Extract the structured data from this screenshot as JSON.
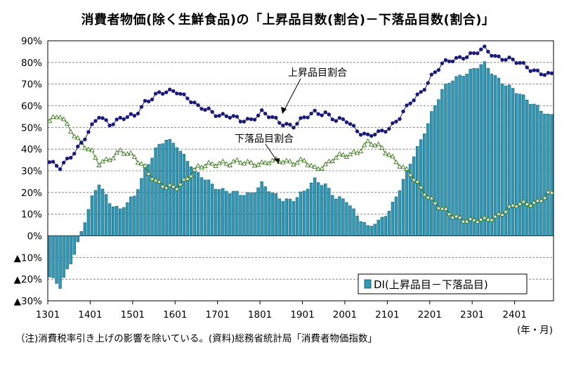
{
  "title": "消費者物価(除く生鮮食品)の「上昇品目数(割合)－下落品目数(割合)」",
  "note": "（注)消費税率引き上げの影響を除いている。(資料)総務省統計局「消費者物価指数」",
  "chart_data": {
    "type": "bar+line",
    "title": "消費者物価(除く生鮮食品)の「上昇品目数(割合)－下落品目数(割合)」",
    "x_unit_label": "(年・月)",
    "x_tick_labels": [
      "1301",
      "1401",
      "1501",
      "1601",
      "1701",
      "1801",
      "1901",
      "2001",
      "2101",
      "2201",
      "2301",
      "2401"
    ],
    "y_tick_labels": [
      "▲30%",
      "▲20%",
      "▲10%",
      "0%",
      "10%",
      "20%",
      "30%",
      "40%",
      "50%",
      "60%",
      "70%",
      "80%",
      "90%"
    ],
    "ylim": [
      -30,
      90
    ],
    "y_ticks": [
      -30,
      -20,
      -10,
      0,
      10,
      20,
      30,
      40,
      50,
      60,
      70,
      80,
      90
    ],
    "grid": "horizontal dashed",
    "legend_position": "bottom-right",
    "annotations": [
      "上昇品目割合",
      "下落品目割合"
    ],
    "colors": {
      "bar": "#2E9AB8",
      "rise_line": "#1A1A7A",
      "fall_line": "#3C7A1F"
    },
    "n_months": 143,
    "start_month": "2013-01",
    "series": [
      {
        "name": "上昇品目割合",
        "type": "line-marker",
        "anchors": [
          [
            0,
            34
          ],
          [
            3,
            31
          ],
          [
            6,
            37
          ],
          [
            9,
            43
          ],
          [
            12,
            50
          ],
          [
            14,
            55
          ],
          [
            17,
            52
          ],
          [
            20,
            54
          ],
          [
            24,
            55
          ],
          [
            27,
            62
          ],
          [
            30,
            65
          ],
          [
            33,
            66
          ],
          [
            36,
            67
          ],
          [
            39,
            64
          ],
          [
            42,
            59
          ],
          [
            45,
            58
          ],
          [
            48,
            56
          ],
          [
            51,
            55
          ],
          [
            54,
            53
          ],
          [
            57,
            54
          ],
          [
            60,
            57
          ],
          [
            63,
            54
          ],
          [
            66,
            52
          ],
          [
            69,
            51
          ],
          [
            72,
            54
          ],
          [
            75,
            57
          ],
          [
            78,
            57
          ],
          [
            81,
            53
          ],
          [
            84,
            53
          ],
          [
            87,
            49
          ],
          [
            90,
            46
          ],
          [
            93,
            47
          ],
          [
            96,
            50
          ],
          [
            99,
            55
          ],
          [
            102,
            61
          ],
          [
            105,
            66
          ],
          [
            108,
            74
          ],
          [
            111,
            79
          ],
          [
            114,
            81
          ],
          [
            117,
            83
          ],
          [
            120,
            84
          ],
          [
            123,
            86
          ],
          [
            126,
            83
          ],
          [
            129,
            82
          ],
          [
            132,
            80
          ],
          [
            135,
            78
          ],
          [
            138,
            76
          ],
          [
            141,
            74
          ],
          [
            142,
            74
          ]
        ]
      },
      {
        "name": "下落品目割合",
        "type": "line-marker",
        "anchors": [
          [
            0,
            53
          ],
          [
            3,
            55
          ],
          [
            6,
            49
          ],
          [
            9,
            43
          ],
          [
            12,
            38
          ],
          [
            14,
            33
          ],
          [
            17,
            36
          ],
          [
            20,
            39
          ],
          [
            24,
            36
          ],
          [
            27,
            32
          ],
          [
            30,
            25
          ],
          [
            33,
            22
          ],
          [
            36,
            23
          ],
          [
            39,
            27
          ],
          [
            42,
            31
          ],
          [
            45,
            33
          ],
          [
            48,
            34
          ],
          [
            51,
            33
          ],
          [
            54,
            34
          ],
          [
            57,
            34
          ],
          [
            60,
            33
          ],
          [
            63,
            34
          ],
          [
            66,
            35
          ],
          [
            69,
            34
          ],
          [
            72,
            34
          ],
          [
            75,
            31
          ],
          [
            78,
            33
          ],
          [
            81,
            36
          ],
          [
            84,
            37
          ],
          [
            87,
            39
          ],
          [
            90,
            43
          ],
          [
            93,
            41
          ],
          [
            96,
            38
          ],
          [
            99,
            33
          ],
          [
            102,
            28
          ],
          [
            105,
            22
          ],
          [
            108,
            17
          ],
          [
            111,
            12
          ],
          [
            114,
            9
          ],
          [
            117,
            8
          ],
          [
            120,
            7
          ],
          [
            123,
            7
          ],
          [
            126,
            9
          ],
          [
            129,
            12
          ],
          [
            132,
            14
          ],
          [
            135,
            15
          ],
          [
            138,
            16
          ],
          [
            141,
            19
          ],
          [
            142,
            19
          ]
        ]
      },
      {
        "name": "DI(上昇品目－下落品目)",
        "type": "bar",
        "anchors": [
          [
            0,
            -19
          ],
          [
            3,
            -24
          ],
          [
            6,
            -12
          ],
          [
            8,
            -3
          ],
          [
            10,
            7
          ],
          [
            12,
            17
          ],
          [
            14,
            24
          ],
          [
            17,
            16
          ],
          [
            20,
            12
          ],
          [
            24,
            18
          ],
          [
            27,
            31
          ],
          [
            30,
            40
          ],
          [
            33,
            44
          ],
          [
            36,
            42
          ],
          [
            39,
            35
          ],
          [
            42,
            28
          ],
          [
            45,
            25
          ],
          [
            48,
            22
          ],
          [
            51,
            20
          ],
          [
            54,
            19
          ],
          [
            57,
            20
          ],
          [
            60,
            24
          ],
          [
            63,
            19
          ],
          [
            66,
            17
          ],
          [
            69,
            17
          ],
          [
            72,
            20
          ],
          [
            75,
            26
          ],
          [
            78,
            24
          ],
          [
            81,
            17
          ],
          [
            84,
            16
          ],
          [
            87,
            10
          ],
          [
            90,
            4
          ],
          [
            93,
            6
          ],
          [
            96,
            12
          ],
          [
            99,
            22
          ],
          [
            102,
            33
          ],
          [
            105,
            44
          ],
          [
            108,
            57
          ],
          [
            111,
            67
          ],
          [
            114,
            72
          ],
          [
            117,
            75
          ],
          [
            120,
            77
          ],
          [
            123,
            79
          ],
          [
            126,
            74
          ],
          [
            129,
            70
          ],
          [
            132,
            66
          ],
          [
            135,
            63
          ],
          [
            138,
            60
          ],
          [
            141,
            55
          ],
          [
            142,
            55
          ]
        ]
      }
    ]
  }
}
